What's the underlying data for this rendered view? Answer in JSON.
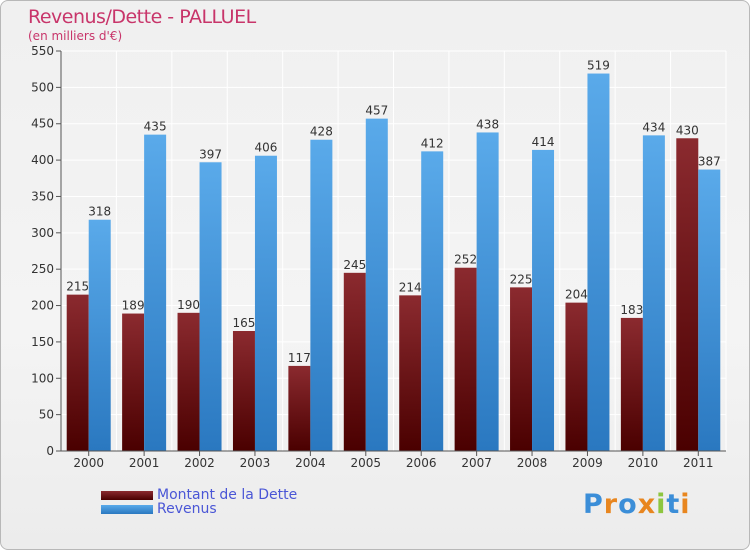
{
  "header": {
    "title": "Revenus/Dette - PALLUEL",
    "subtitle": "(en milliers d'€)"
  },
  "legend": {
    "debt_label": "Montant de la Dette",
    "revenue_label": "Revenus"
  },
  "logo": {
    "text": "Proxiti",
    "letters": [
      {
        "ch": "P",
        "color": "#3b8ed8"
      },
      {
        "ch": "r",
        "color": "#e8861f"
      },
      {
        "ch": "o",
        "color": "#3b8ed8"
      },
      {
        "ch": "x",
        "color": "#e8861f"
      },
      {
        "ch": "i",
        "color": "#8dc63f"
      },
      {
        "ch": "t",
        "color": "#3b8ed8"
      },
      {
        "ch": "i",
        "color": "#e8861f"
      }
    ]
  },
  "colors": {
    "debt_top": "#8b2a2f",
    "debt_bottom": "#4a0000",
    "revenue_top": "#5aaaea",
    "revenue_bottom": "#2a78c0",
    "title": "#c8356a",
    "legend_text": "#4a56d6"
  },
  "chart_data": {
    "type": "bar",
    "title": "Revenus/Dette - PALLUEL",
    "ylabel": "(en milliers d'€)",
    "categories": [
      "2000",
      "2001",
      "2002",
      "2003",
      "2004",
      "2005",
      "2006",
      "2007",
      "2008",
      "2009",
      "2010",
      "2011"
    ],
    "series": [
      {
        "name": "Montant de la Dette",
        "values": [
          215,
          189,
          190,
          165,
          117,
          245,
          214,
          252,
          225,
          204,
          183,
          430
        ]
      },
      {
        "name": "Revenus",
        "values": [
          318,
          435,
          397,
          406,
          428,
          457,
          412,
          438,
          414,
          519,
          434,
          387
        ]
      }
    ],
    "ylim": [
      0,
      550
    ],
    "yticks": [
      0,
      50,
      100,
      150,
      200,
      250,
      300,
      350,
      400,
      450,
      500,
      550
    ],
    "grid": true,
    "legend_position": "bottom-left"
  }
}
